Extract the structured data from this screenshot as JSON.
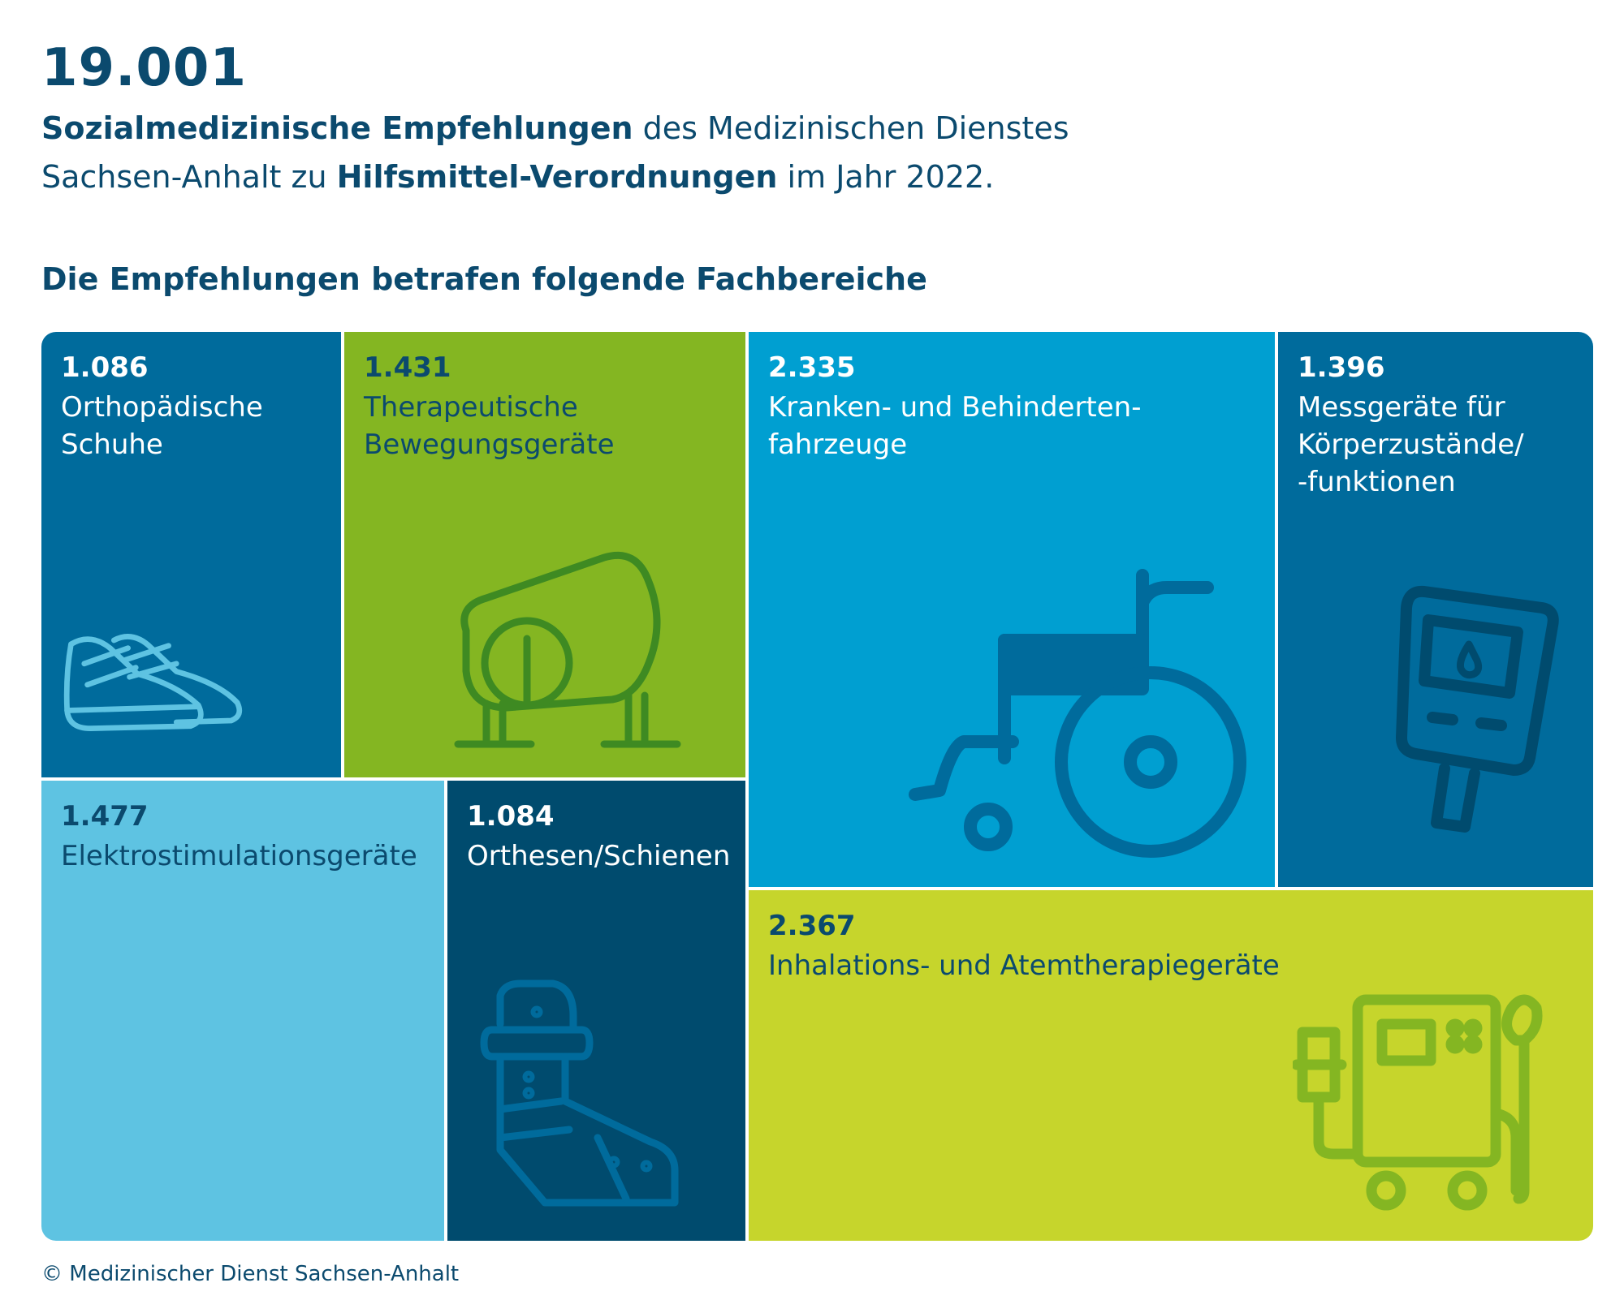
{
  "header": {
    "total": "19.001",
    "intro_bold_1": "Sozialmedizinische Empfehlungen",
    "intro_text_1": " des Medizinischen Dienstes",
    "intro_text_2": "Sachsen-Anhalt zu ",
    "intro_bold_2": "Hilfsmittel-Verordnungen",
    "intro_text_3": " im Jahr 2022.",
    "subheading": "Die Empfehlungen betrafen folgende Fachbereiche"
  },
  "chart_data": {
    "type": "treemap",
    "total": 19001,
    "categories": [
      {
        "value": 1086,
        "display": "1.086",
        "label": "Orthopädische\nSchuhe",
        "color": "#006b9c",
        "icon": "shoes-icon"
      },
      {
        "value": 1431,
        "display": "1.431",
        "label": "Therapeutische\nBewegungsgeräte",
        "color": "#84b622",
        "icon": "exercise-bike-icon"
      },
      {
        "value": 2335,
        "display": "2.335",
        "label": "Kranken- und Behinderten-\nfahrzeuge",
        "color": "#009fd1",
        "icon": "wheelchair-icon"
      },
      {
        "value": 1396,
        "display": "1.396",
        "label": "Messgeräte für\nKörperzustände/\n-funktionen",
        "color": "#006b9c",
        "icon": "glucose-meter-icon"
      },
      {
        "value": 1477,
        "display": "1.477",
        "label": "Elektrostimulationsgeräte",
        "color": "#5ec3e2",
        "icon": ""
      },
      {
        "value": 1084,
        "display": "1.084",
        "label": "Orthesen/Schienen",
        "color": "#004b6e",
        "icon": "orthosis-icon"
      },
      {
        "value": 2367,
        "display": "2.367",
        "label": "Inhalations- und Atemtherapiegeräte",
        "color": "#c6d52c",
        "icon": "inhalation-device-icon"
      }
    ]
  },
  "footer": {
    "copyright": "© Medizinischer Dienst Sachsen-Anhalt"
  }
}
